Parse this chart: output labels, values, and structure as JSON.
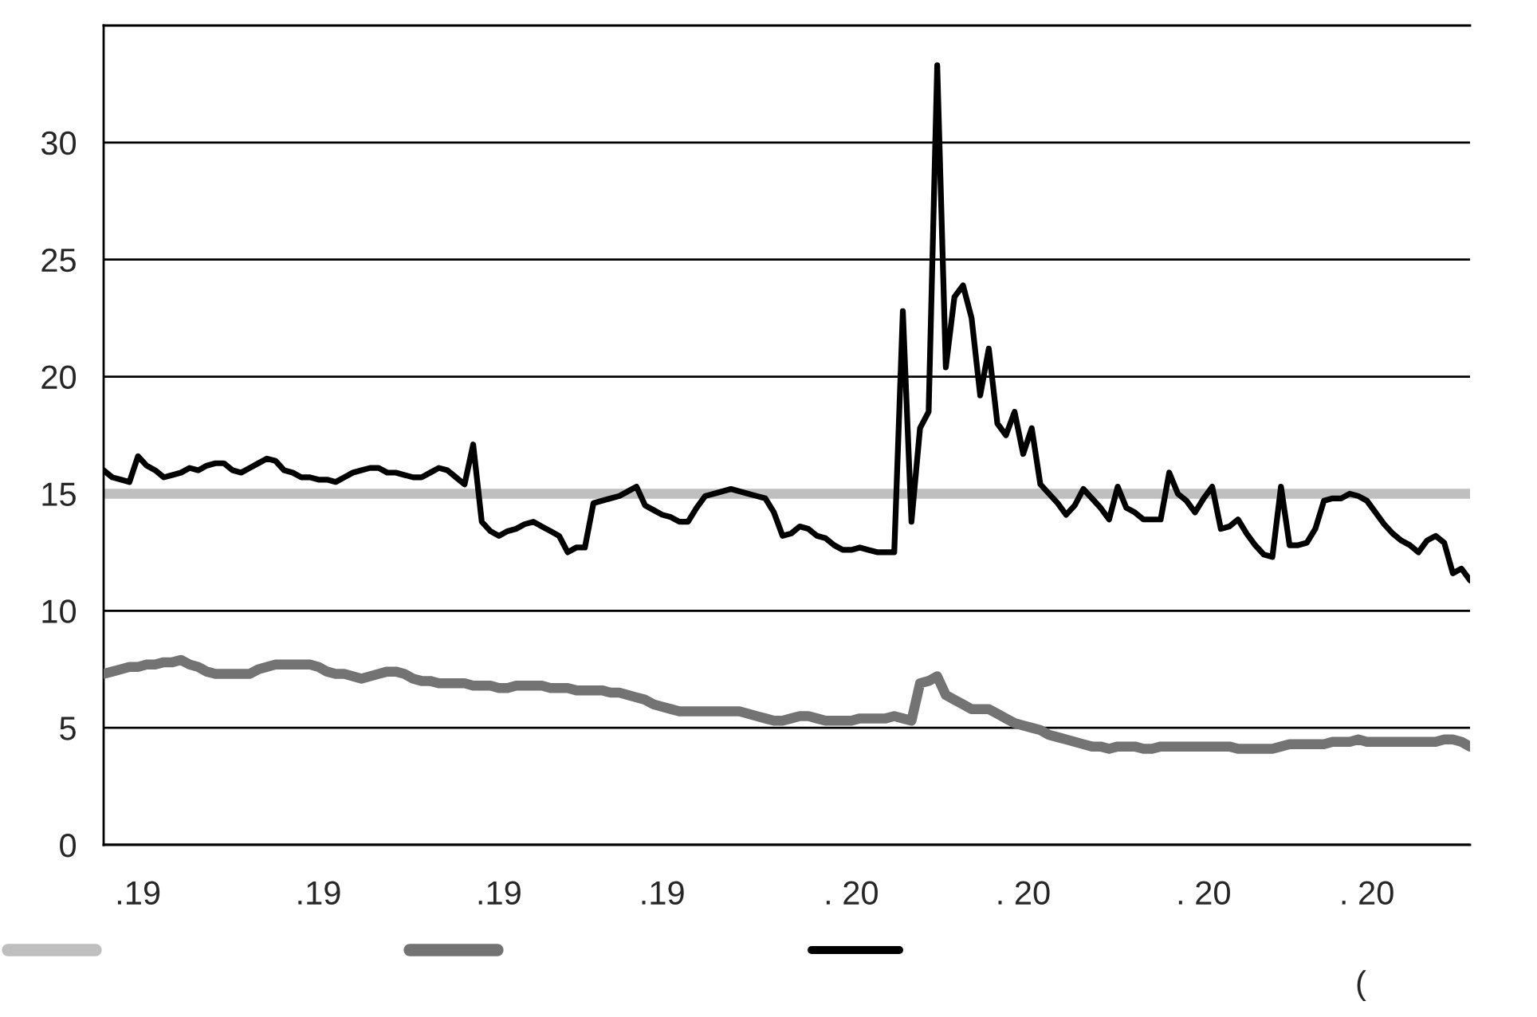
{
  "chart_data": {
    "type": "line",
    "ylim": [
      0,
      35
    ],
    "yticks": [
      0,
      5,
      10,
      15,
      20,
      25,
      30
    ],
    "categories": [
      null,
      null,
      null,
      null,
      ".19",
      null,
      null,
      null,
      null,
      null,
      null,
      null,
      null,
      null,
      null,
      null,
      null,
      null,
      null,
      null,
      null,
      null,
      null,
      null,
      null,
      ".19",
      null,
      null,
      null,
      null,
      null,
      null,
      null,
      null,
      null,
      null,
      null,
      null,
      null,
      null,
      null,
      null,
      null,
      null,
      null,
      null,
      ".19",
      null,
      null,
      null,
      null,
      null,
      null,
      null,
      null,
      null,
      null,
      null,
      null,
      null,
      null,
      null,
      null,
      null,
      null,
      ".19",
      null,
      null,
      null,
      null,
      null,
      null,
      null,
      null,
      null,
      null,
      null,
      null,
      null,
      null,
      null,
      null,
      null,
      null,
      null,
      null,
      null,
      ". 20",
      null,
      null,
      null,
      null,
      null,
      null,
      null,
      null,
      null,
      null,
      null,
      null,
      null,
      null,
      null,
      null,
      null,
      null,
      null,
      ". 20",
      null,
      null,
      null,
      null,
      null,
      null,
      null,
      null,
      null,
      null,
      null,
      null,
      null,
      null,
      null,
      null,
      null,
      null,
      null,
      null,
      ". 20",
      null,
      null,
      null,
      null,
      null,
      null,
      null,
      null,
      null,
      null,
      null,
      null,
      null,
      null,
      null,
      null,
      null,
      null,
      ". 20",
      null,
      null,
      null,
      null,
      null,
      null,
      null,
      null,
      null,
      null,
      null,
      null
    ],
    "grid": "y",
    "line_style": "solid",
    "marker": "none",
    "series": [
      {
        "color": "#737373",
        "values": [
          7.3,
          7.4,
          7.5,
          7.6,
          7.6,
          7.7,
          7.7,
          7.8,
          7.8,
          7.9,
          7.7,
          7.6,
          7.4,
          7.3,
          7.3,
          7.3,
          7.3,
          7.3,
          7.5,
          7.6,
          7.7,
          7.7,
          7.7,
          7.7,
          7.7,
          7.6,
          7.4,
          7.3,
          7.3,
          7.2,
          7.1,
          7.2,
          7.3,
          7.4,
          7.4,
          7.3,
          7.1,
          7.0,
          7.0,
          6.9,
          6.9,
          6.9,
          6.9,
          6.8,
          6.8,
          6.8,
          6.7,
          6.7,
          6.8,
          6.8,
          6.8,
          6.8,
          6.7,
          6.7,
          6.7,
          6.6,
          6.6,
          6.6,
          6.6,
          6.5,
          6.5,
          6.4,
          6.3,
          6.2,
          6.0,
          5.9,
          5.8,
          5.7,
          5.7,
          5.7,
          5.7,
          5.7,
          5.7,
          5.7,
          5.7,
          5.6,
          5.5,
          5.4,
          5.3,
          5.3,
          5.4,
          5.5,
          5.5,
          5.4,
          5.3,
          5.3,
          5.3,
          5.3,
          5.4,
          5.4,
          5.4,
          5.4,
          5.5,
          5.4,
          5.3,
          6.9,
          7.0,
          7.2,
          6.4,
          6.2,
          6.0,
          5.8,
          5.8,
          5.8,
          5.6,
          5.4,
          5.2,
          5.1,
          5.0,
          4.9,
          4.7,
          4.6,
          4.5,
          4.4,
          4.3,
          4.2,
          4.2,
          4.1,
          4.2,
          4.2,
          4.2,
          4.1,
          4.1,
          4.2,
          4.2,
          4.2,
          4.2,
          4.2,
          4.2,
          4.2,
          4.2,
          4.2,
          4.1,
          4.1,
          4.1,
          4.1,
          4.1,
          4.2,
          4.3,
          4.3,
          4.3,
          4.3,
          4.3,
          4.4,
          4.4,
          4.4,
          4.5,
          4.4,
          4.4,
          4.4,
          4.4,
          4.4,
          4.4,
          4.4,
          4.4,
          4.4,
          4.5,
          4.5,
          4.4,
          4.2
        ]
      },
      {
        "color": "#000000",
        "values": [
          16.0,
          15.7,
          15.6,
          15.5,
          16.6,
          16.2,
          16.0,
          15.7,
          15.8,
          15.9,
          16.1,
          16.0,
          16.2,
          16.3,
          16.3,
          16.0,
          15.9,
          16.1,
          16.3,
          16.5,
          16.4,
          16.0,
          15.9,
          15.7,
          15.7,
          15.6,
          15.6,
          15.5,
          15.7,
          15.9,
          16.0,
          16.1,
          16.1,
          15.9,
          15.9,
          15.8,
          15.7,
          15.7,
          15.9,
          16.1,
          16.0,
          15.7,
          15.4,
          17.1,
          13.8,
          13.4,
          13.2,
          13.4,
          13.5,
          13.7,
          13.8,
          13.6,
          13.4,
          13.2,
          12.5,
          12.7,
          12.7,
          14.6,
          14.7,
          14.8,
          14.9,
          15.1,
          15.3,
          14.5,
          14.3,
          14.1,
          14.0,
          13.8,
          13.8,
          14.4,
          14.9,
          15.0,
          15.1,
          15.2,
          15.1,
          15.0,
          14.9,
          14.8,
          14.2,
          13.2,
          13.3,
          13.6,
          13.5,
          13.2,
          13.1,
          12.8,
          12.6,
          12.6,
          12.7,
          12.6,
          12.5,
          12.5,
          12.5,
          22.8,
          13.8,
          17.8,
          18.5,
          33.3,
          20.4,
          23.4,
          23.9,
          22.5,
          19.2,
          21.2,
          18.0,
          17.5,
          18.5,
          16.7,
          17.8,
          15.4,
          15.0,
          14.6,
          14.1,
          14.5,
          15.2,
          14.8,
          14.4,
          13.9,
          15.3,
          14.4,
          14.2,
          13.9,
          13.9,
          13.9,
          15.9,
          15.0,
          14.7,
          14.2,
          14.8,
          15.3,
          13.5,
          13.6,
          13.9,
          13.3,
          12.8,
          12.4,
          12.3,
          15.3,
          12.8,
          12.8,
          12.9,
          13.5,
          14.7,
          14.8,
          14.8,
          15.0,
          14.9,
          14.7,
          14.2,
          13.7,
          13.3,
          13.0,
          12.8,
          12.5,
          13.0,
          13.2,
          12.9,
          11.6,
          11.8,
          11.3
        ]
      }
    ],
    "ref_lines": [
      {
        "axis": "y",
        "value": 15,
        "color": "#bfbfbf",
        "line_style": "solid"
      }
    ],
    "annotations": [
      "("
    ]
  }
}
